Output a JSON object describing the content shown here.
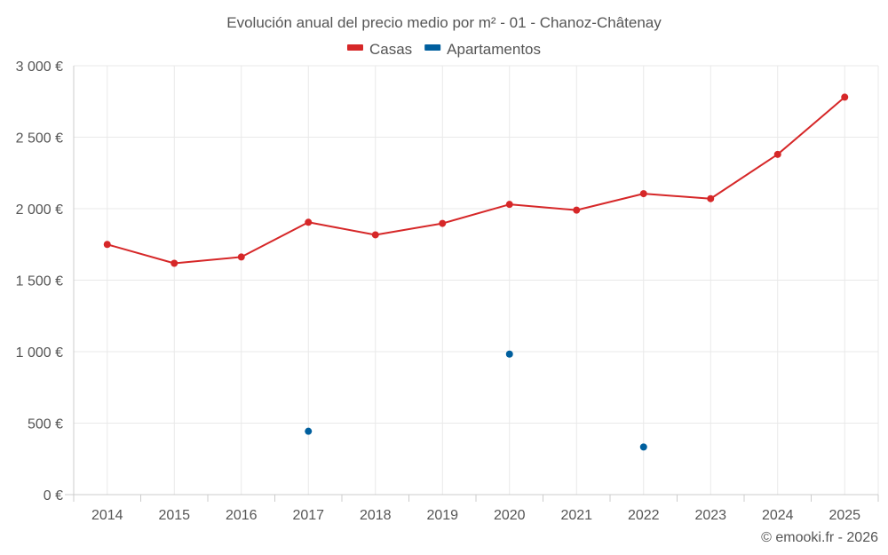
{
  "chart_data": {
    "type": "line",
    "title": "Evolución anual del precio medio por m² - 01 - Chanoz-Châtenay",
    "categories": [
      "2014",
      "2015",
      "2016",
      "2017",
      "2018",
      "2019",
      "2020",
      "2021",
      "2022",
      "2023",
      "2024",
      "2025"
    ],
    "series": [
      {
        "name": "Casas",
        "color": "#d62728",
        "values": [
          1750,
          1618,
          1662,
          1905,
          1817,
          1897,
          2030,
          1990,
          2105,
          2070,
          2380,
          2780
        ]
      },
      {
        "name": "Apartamentos",
        "color": "#005f9e",
        "values": [
          null,
          null,
          null,
          443,
          null,
          null,
          983,
          null,
          333,
          null,
          null,
          null
        ]
      }
    ],
    "yticks": [
      {
        "value": 0,
        "label": "0 €"
      },
      {
        "value": 500,
        "label": "500 €"
      },
      {
        "value": 1000,
        "label": "1 000 €"
      },
      {
        "value": 1500,
        "label": "1 500 €"
      },
      {
        "value": 2000,
        "label": "2 000 €"
      },
      {
        "value": 2500,
        "label": "2 500 €"
      },
      {
        "value": 3000,
        "label": "3 000 €"
      }
    ],
    "ylim": [
      0,
      3000
    ],
    "xlabel": "",
    "ylabel": "",
    "grid": true,
    "legend_position": "top-center"
  },
  "credit": "© emooki.fr - 2026"
}
